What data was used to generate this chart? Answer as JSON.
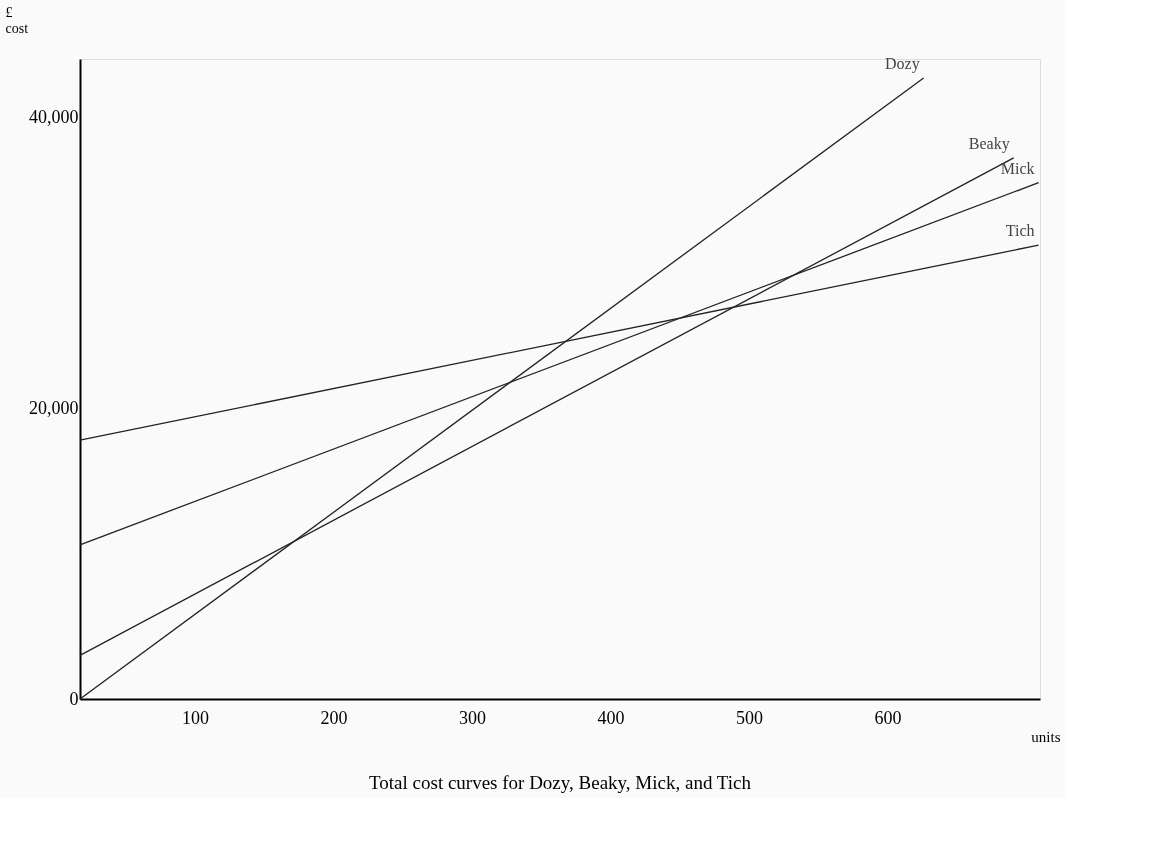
{
  "chart_data": {
    "type": "line",
    "title": "Total cost curves for Dozy, Beaky, Mick,  and Tich",
    "xlabel": "units",
    "ylabel": "£\ncost",
    "xlim": [
      17,
      710
    ],
    "xticks": [
      100,
      200,
      300,
      400,
      500,
      600
    ],
    "ylim": [
      0,
      44000
    ],
    "yticks": [
      {
        "value": 0,
        "label": "0"
      },
      {
        "value": 20000,
        "label": "20,000"
      },
      {
        "value": 40000,
        "label": "40,000"
      }
    ],
    "grid": false,
    "legend": false,
    "marker": "none",
    "line_style": "solid",
    "series": [
      {
        "name": "Dozy",
        "color": "#222222",
        "x": [
          17,
          626
        ],
        "values": [
          0,
          42700
        ]
      },
      {
        "name": "Beaky",
        "color": "#222222",
        "x": [
          17,
          691
        ],
        "values": [
          3000,
          37200
        ]
      },
      {
        "name": "Mick",
        "color": "#222222",
        "x": [
          17,
          709
        ],
        "values": [
          10600,
          35500
        ]
      },
      {
        "name": "Tich",
        "color": "#222222",
        "x": [
          17,
          709
        ],
        "values": [
          17800,
          31200
        ]
      }
    ]
  }
}
